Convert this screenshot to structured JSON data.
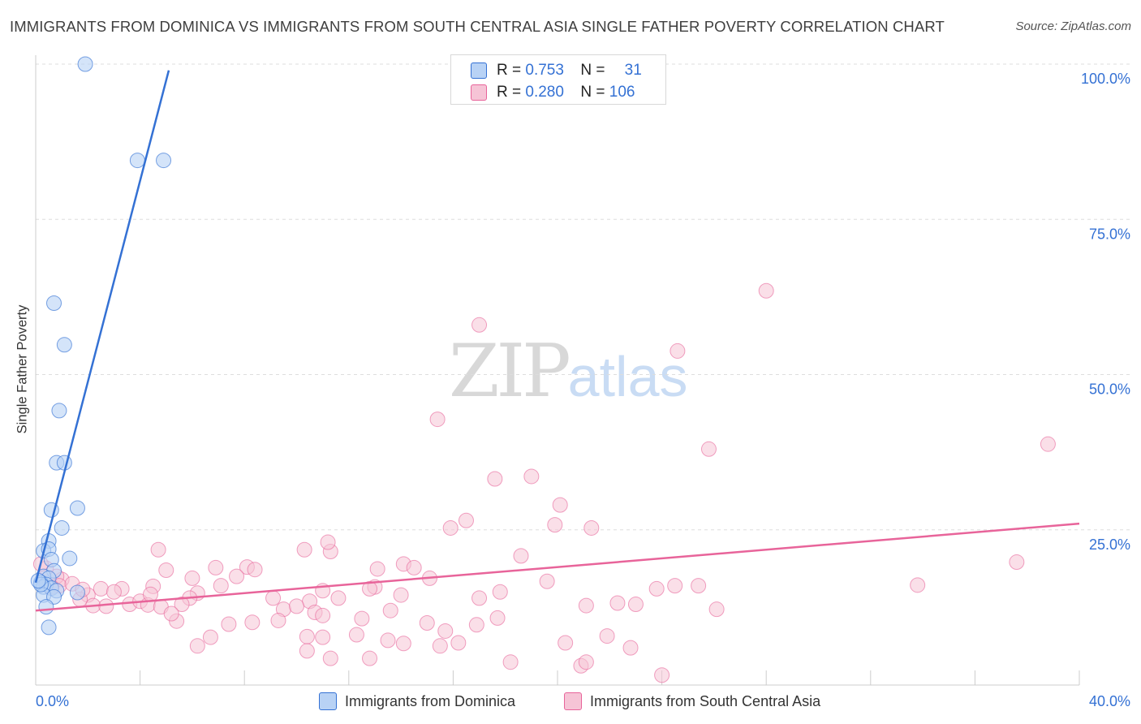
{
  "title": "IMMIGRANTS FROM DOMINICA VS IMMIGRANTS FROM SOUTH CENTRAL ASIA SINGLE FATHER POVERTY CORRELATION CHART",
  "source": "Source: ZipAtlas.com",
  "watermark": {
    "zip": "ZIP",
    "atlas": "atlas"
  },
  "colors": {
    "blue": "#3471d4",
    "blue_fill": "#b8d2f5",
    "pink": "#e8649a",
    "pink_fill": "#f6c4d6",
    "grid": "#dddddd",
    "axis_text": "#3471d4"
  },
  "legend": {
    "r_label": "R =",
    "n_label": "N =",
    "series1": {
      "r": "0.753",
      "n": "31"
    },
    "series2": {
      "r": "0.280",
      "n": "106"
    }
  },
  "chart_data": {
    "type": "scatter",
    "title": "IMMIGRANTS FROM DOMINICA VS IMMIGRANTS FROM SOUTH CENTRAL ASIA SINGLE FATHER POVERTY CORRELATION CHART",
    "xlabel": "",
    "ylabel": "Single Father Poverty",
    "xlim": [
      0,
      40
    ],
    "ylim": [
      0,
      100
    ],
    "x_tick_labels": [
      "0.0%",
      "40.0%"
    ],
    "y_ticks": [
      25,
      50,
      75,
      100
    ],
    "y_tick_labels": [
      "25.0%",
      "50.0%",
      "75.0%",
      "100.0%"
    ],
    "grid": true,
    "legend_position": "bottom",
    "series": [
      {
        "name": "Immigrants from Dominica",
        "color": "#3471d4",
        "r": 0.753,
        "n": 31,
        "trend": {
          "x": [
            0,
            5.1
          ],
          "y": [
            16.5,
            99.0
          ]
        },
        "points": [
          [
            1.9,
            100.0
          ],
          [
            3.9,
            84.5
          ],
          [
            4.9,
            84.5
          ],
          [
            0.7,
            61.5
          ],
          [
            1.1,
            54.8
          ],
          [
            0.9,
            44.2
          ],
          [
            0.8,
            35.8
          ],
          [
            1.1,
            35.8
          ],
          [
            0.6,
            28.2
          ],
          [
            1.6,
            28.5
          ],
          [
            1.0,
            25.3
          ],
          [
            0.5,
            23.2
          ],
          [
            0.3,
            21.6
          ],
          [
            0.5,
            21.9
          ],
          [
            1.3,
            20.4
          ],
          [
            0.6,
            20.2
          ],
          [
            0.7,
            18.4
          ],
          [
            0.3,
            17.5
          ],
          [
            0.5,
            17.2
          ],
          [
            0.2,
            16.5
          ],
          [
            0.4,
            16.2
          ],
          [
            0.3,
            15.8
          ],
          [
            0.6,
            15.6
          ],
          [
            0.8,
            15.2
          ],
          [
            0.3,
            14.5
          ],
          [
            0.7,
            14.2
          ],
          [
            1.6,
            14.9
          ],
          [
            0.4,
            12.6
          ],
          [
            0.5,
            9.3
          ],
          [
            0.2,
            16.2
          ],
          [
            0.1,
            16.8
          ]
        ]
      },
      {
        "name": "Immigrants from South Central Asia",
        "color": "#e8649a",
        "r": 0.28,
        "n": 106,
        "trend": {
          "x": [
            0,
            40
          ],
          "y": [
            12.0,
            26.0
          ]
        },
        "points": [
          [
            28.0,
            63.5
          ],
          [
            17.0,
            58.0
          ],
          [
            24.6,
            53.8
          ],
          [
            15.4,
            42.8
          ],
          [
            25.8,
            38.0
          ],
          [
            38.8,
            38.8
          ],
          [
            19.0,
            33.6
          ],
          [
            17.6,
            33.2
          ],
          [
            20.1,
            29.0
          ],
          [
            16.5,
            26.5
          ],
          [
            19.9,
            25.8
          ],
          [
            21.3,
            25.3
          ],
          [
            15.9,
            25.3
          ],
          [
            4.7,
            21.8
          ],
          [
            10.3,
            21.8
          ],
          [
            11.3,
            21.5
          ],
          [
            11.2,
            23.0
          ],
          [
            18.6,
            20.8
          ],
          [
            37.6,
            19.8
          ],
          [
            6.9,
            18.9
          ],
          [
            8.1,
            19.0
          ],
          [
            8.4,
            18.6
          ],
          [
            13.1,
            18.7
          ],
          [
            14.1,
            19.5
          ],
          [
            14.5,
            18.9
          ],
          [
            6.0,
            17.2
          ],
          [
            7.7,
            17.5
          ],
          [
            1.0,
            17.0
          ],
          [
            0.8,
            17.5
          ],
          [
            0.4,
            18.8
          ],
          [
            0.2,
            19.5
          ],
          [
            2.5,
            15.5
          ],
          [
            3.3,
            15.5
          ],
          [
            4.5,
            15.9
          ],
          [
            7.1,
            16.0
          ],
          [
            13.0,
            15.8
          ],
          [
            11.0,
            15.2
          ],
          [
            12.8,
            15.5
          ],
          [
            17.8,
            15.0
          ],
          [
            19.6,
            16.7
          ],
          [
            23.8,
            15.5
          ],
          [
            24.5,
            16.0
          ],
          [
            25.4,
            16.0
          ],
          [
            33.8,
            16.1
          ],
          [
            3.0,
            15.0
          ],
          [
            2.0,
            14.5
          ],
          [
            6.2,
            14.8
          ],
          [
            9.1,
            14.0
          ],
          [
            10.5,
            13.5
          ],
          [
            11.6,
            14.0
          ],
          [
            14.0,
            14.5
          ],
          [
            17.0,
            14.0
          ],
          [
            5.9,
            14.0
          ],
          [
            1.7,
            13.8
          ],
          [
            2.2,
            12.8
          ],
          [
            2.7,
            12.7
          ],
          [
            3.6,
            13.0
          ],
          [
            4.0,
            13.5
          ],
          [
            4.3,
            12.9
          ],
          [
            4.8,
            12.6
          ],
          [
            5.6,
            13.0
          ],
          [
            9.5,
            12.2
          ],
          [
            10.0,
            12.7
          ],
          [
            10.7,
            11.7
          ],
          [
            13.6,
            12.0
          ],
          [
            21.1,
            12.8
          ],
          [
            23.0,
            13.0
          ],
          [
            26.1,
            12.2
          ],
          [
            5.4,
            10.3
          ],
          [
            7.4,
            9.8
          ],
          [
            8.3,
            10.1
          ],
          [
            9.3,
            10.4
          ],
          [
            11.0,
            11.2
          ],
          [
            12.5,
            10.7
          ],
          [
            15.0,
            10.0
          ],
          [
            16.9,
            9.7
          ],
          [
            17.7,
            10.8
          ],
          [
            4.4,
            14.6
          ],
          [
            5.2,
            11.5
          ],
          [
            15.7,
            8.7
          ],
          [
            12.3,
            8.1
          ],
          [
            11.0,
            7.7
          ],
          [
            10.4,
            7.8
          ],
          [
            13.5,
            7.2
          ],
          [
            14.1,
            6.7
          ],
          [
            15.5,
            6.3
          ],
          [
            16.2,
            6.8
          ],
          [
            20.3,
            6.8
          ],
          [
            21.9,
            7.9
          ],
          [
            22.8,
            6.0
          ],
          [
            6.7,
            7.7
          ],
          [
            6.2,
            6.3
          ],
          [
            10.4,
            5.5
          ],
          [
            11.3,
            4.3
          ],
          [
            12.8,
            4.3
          ],
          [
            18.2,
            3.7
          ],
          [
            20.9,
            3.1
          ],
          [
            21.1,
            3.7
          ],
          [
            24.0,
            1.6
          ],
          [
            0.9,
            16.0
          ],
          [
            1.4,
            16.3
          ],
          [
            1.8,
            15.4
          ],
          [
            0.6,
            15.8
          ],
          [
            5.0,
            18.5
          ],
          [
            15.1,
            17.2
          ],
          [
            22.3,
            13.2
          ]
        ]
      }
    ]
  }
}
